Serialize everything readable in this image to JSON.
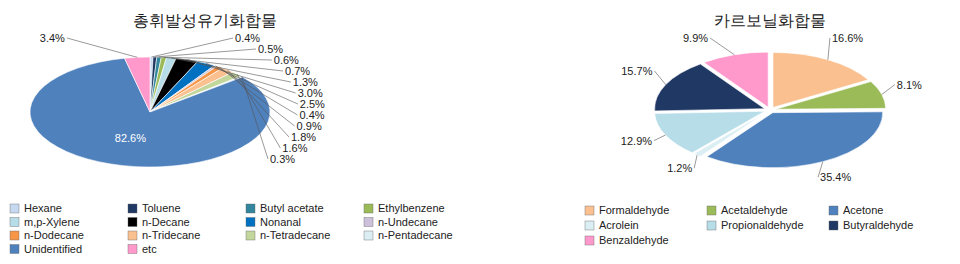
{
  "chart_data": [
    {
      "type": "pie",
      "title": "총휘발성유기화합물",
      "categories": [
        "Hexane",
        "Toluene",
        "Butyl acetate",
        "Ethylbenzene",
        "m,p-Xylene",
        "n-Decane",
        "Nonanal",
        "n-Undecane",
        "n-Dodecane",
        "n-Tridecane",
        "n-Tetradecane",
        "n-Pentadecane",
        "Unidentified",
        "etc"
      ],
      "values": [
        0.4,
        0.5,
        0.6,
        0.7,
        1.3,
        3.0,
        2.5,
        0.4,
        0.9,
        1.8,
        1.6,
        0.3,
        82.6,
        3.4
      ],
      "value_labels": [
        "0.4%",
        "0.5%",
        "0.6%",
        "0.7%",
        "1.3%",
        "3.0%",
        "2.5%",
        "0.4%",
        "0.9%",
        "1.8%",
        "1.6%",
        "0.3%",
        "82.6%",
        "3.4%"
      ],
      "colors": [
        "#c6d9f1",
        "#1f3864",
        "#31859c",
        "#9bbb59",
        "#b7dde8",
        "#000000",
        "#0070c0",
        "#ccc0da",
        "#f79646",
        "#fac090",
        "#c3d69b",
        "#dbeef3",
        "#4f81bd",
        "#ff99cc"
      ],
      "data_labels": true,
      "legend": "bottom"
    },
    {
      "type": "pie",
      "title": "카르보닐화합물",
      "categories": [
        "Formaldehyde",
        "Acetaldehyde",
        "Acetone",
        "Acrolein",
        "Propionaldehyde",
        "Butyraldehyde",
        "Benzaldehyde"
      ],
      "values": [
        16.6,
        8.1,
        35.4,
        1.2,
        12.9,
        15.7,
        9.9
      ],
      "value_labels": [
        "16.6%",
        "8.1%",
        "35.4%",
        "1.2%",
        "12.9%",
        "15.7%",
        "9.9%"
      ],
      "colors": [
        "#fac090",
        "#9bbb59",
        "#4f81bd",
        "#dbeef3",
        "#b7dde8",
        "#1f3864",
        "#ff99cc"
      ],
      "data_labels": true,
      "legend": "bottom"
    }
  ]
}
